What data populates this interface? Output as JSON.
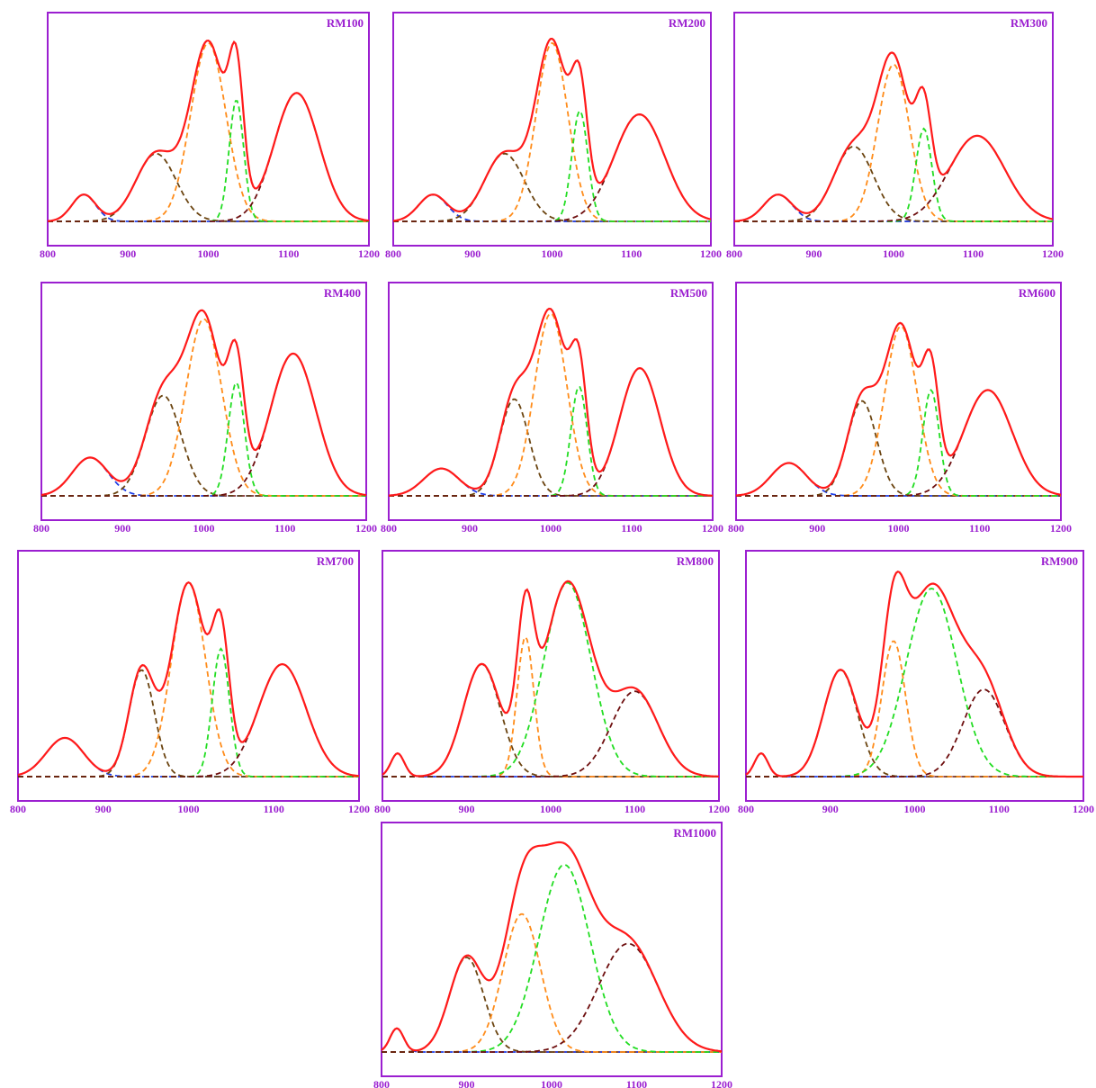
{
  "chart_data": {
    "type": "line",
    "x_ticks": [
      800,
      900,
      1000,
      1100,
      1200
    ],
    "xlim": [
      800,
      1200
    ],
    "grid": false,
    "legend": "none",
    "colors": {
      "frame": "#9b1fd0",
      "labels": "#9b1fd0",
      "envelope": "#ff1a1a",
      "c1": "#1f3fe6",
      "c2": "#6b4410",
      "c3": "#ff8c1a",
      "c4": "#22dd22",
      "c5": "#6e0f0f"
    },
    "panels": [
      {
        "title": "RM100",
        "ylim": [
          0,
          1.1
        ],
        "components": [
          {
            "key": "c1",
            "center": 845,
            "height": 0.15,
            "sigma": 15
          },
          {
            "key": "c2",
            "center": 935,
            "height": 0.38,
            "sigma": 25
          },
          {
            "key": "c3",
            "center": 1000,
            "height": 1.0,
            "sigma": 22
          },
          {
            "key": "c4",
            "center": 1035,
            "height": 0.68,
            "sigma": 9
          },
          {
            "key": "c5",
            "center": 1110,
            "height": 0.72,
            "sigma": 28
          }
        ]
      },
      {
        "title": "RM200",
        "ylim": [
          0,
          1.1
        ],
        "components": [
          {
            "key": "c1",
            "center": 850,
            "height": 0.15,
            "sigma": 18
          },
          {
            "key": "c2",
            "center": 940,
            "height": 0.38,
            "sigma": 25
          },
          {
            "key": "c3",
            "center": 1000,
            "height": 1.0,
            "sigma": 20
          },
          {
            "key": "c4",
            "center": 1035,
            "height": 0.62,
            "sigma": 10
          },
          {
            "key": "c5",
            "center": 1110,
            "height": 0.6,
            "sigma": 32
          }
        ]
      },
      {
        "title": "RM300",
        "ylim": [
          0,
          1.1
        ],
        "components": [
          {
            "key": "c1",
            "center": 855,
            "height": 0.15,
            "sigma": 18
          },
          {
            "key": "c2",
            "center": 950,
            "height": 0.42,
            "sigma": 25
          },
          {
            "key": "c3",
            "center": 1000,
            "height": 0.88,
            "sigma": 20
          },
          {
            "key": "c4",
            "center": 1038,
            "height": 0.52,
            "sigma": 10
          },
          {
            "key": "c5",
            "center": 1105,
            "height": 0.48,
            "sigma": 35
          }
        ]
      },
      {
        "title": "RM400",
        "ylim": [
          0,
          1.1
        ],
        "components": [
          {
            "key": "c1",
            "center": 860,
            "height": 0.21,
            "sigma": 22
          },
          {
            "key": "c2",
            "center": 950,
            "height": 0.55,
            "sigma": 22
          },
          {
            "key": "c3",
            "center": 1000,
            "height": 0.97,
            "sigma": 22
          },
          {
            "key": "c4",
            "center": 1040,
            "height": 0.62,
            "sigma": 10
          },
          {
            "key": "c5",
            "center": 1110,
            "height": 0.78,
            "sigma": 28
          }
        ]
      },
      {
        "title": "RM500",
        "ylim": [
          0,
          1.1
        ],
        "components": [
          {
            "key": "c1",
            "center": 865,
            "height": 0.15,
            "sigma": 22
          },
          {
            "key": "c2",
            "center": 955,
            "height": 0.53,
            "sigma": 18
          },
          {
            "key": "c3",
            "center": 1000,
            "height": 1.0,
            "sigma": 20
          },
          {
            "key": "c4",
            "center": 1035,
            "height": 0.6,
            "sigma": 10
          },
          {
            "key": "c5",
            "center": 1110,
            "height": 0.7,
            "sigma": 25
          }
        ]
      },
      {
        "title": "RM600",
        "ylim": [
          0,
          1.1
        ],
        "components": [
          {
            "key": "c1",
            "center": 865,
            "height": 0.18,
            "sigma": 22
          },
          {
            "key": "c2",
            "center": 955,
            "height": 0.52,
            "sigma": 18
          },
          {
            "key": "c3",
            "center": 1003,
            "height": 0.93,
            "sigma": 20
          },
          {
            "key": "c4",
            "center": 1040,
            "height": 0.58,
            "sigma": 10
          },
          {
            "key": "c5",
            "center": 1110,
            "height": 0.58,
            "sigma": 30
          }
        ]
      },
      {
        "title": "RM700",
        "ylim": [
          0,
          1.1
        ],
        "components": [
          {
            "key": "c1",
            "center": 855,
            "height": 0.2,
            "sigma": 22
          },
          {
            "key": "c2",
            "center": 945,
            "height": 0.55,
            "sigma": 15
          },
          {
            "key": "c3",
            "center": 1000,
            "height": 1.0,
            "sigma": 20
          },
          {
            "key": "c4",
            "center": 1038,
            "height": 0.66,
            "sigma": 10
          },
          {
            "key": "c5",
            "center": 1110,
            "height": 0.58,
            "sigma": 28
          }
        ]
      },
      {
        "title": "RM800",
        "ylim": [
          0,
          1.1
        ],
        "components": [
          {
            "key": "c1",
            "center": 818,
            "height": 0.12,
            "sigma": 8
          },
          {
            "key": "c2",
            "center": 918,
            "height": 0.58,
            "sigma": 22
          },
          {
            "key": "c3",
            "center": 970,
            "height": 0.72,
            "sigma": 10
          },
          {
            "key": "c4",
            "center": 1020,
            "height": 1.0,
            "sigma": 28
          },
          {
            "key": "c5",
            "center": 1100,
            "height": 0.44,
            "sigma": 28
          }
        ]
      },
      {
        "title": "RM900",
        "ylim": [
          0,
          1.1
        ],
        "components": [
          {
            "key": "c1",
            "center": 818,
            "height": 0.12,
            "sigma": 8
          },
          {
            "key": "c2",
            "center": 912,
            "height": 0.55,
            "sigma": 20
          },
          {
            "key": "c3",
            "center": 975,
            "height": 0.7,
            "sigma": 14
          },
          {
            "key": "c4",
            "center": 1020,
            "height": 0.97,
            "sigma": 30
          },
          {
            "key": "c5",
            "center": 1082,
            "height": 0.45,
            "sigma": 25
          }
        ]
      },
      {
        "title": "RM1000",
        "ylim": [
          0,
          1.1
        ],
        "components": [
          {
            "key": "c1",
            "center": 818,
            "height": 0.12,
            "sigma": 8
          },
          {
            "key": "c2",
            "center": 900,
            "height": 0.48,
            "sigma": 20
          },
          {
            "key": "c3",
            "center": 965,
            "height": 0.7,
            "sigma": 22
          },
          {
            "key": "c4",
            "center": 1015,
            "height": 0.95,
            "sigma": 30
          },
          {
            "key": "c5",
            "center": 1090,
            "height": 0.55,
            "sigma": 35
          }
        ]
      }
    ]
  }
}
